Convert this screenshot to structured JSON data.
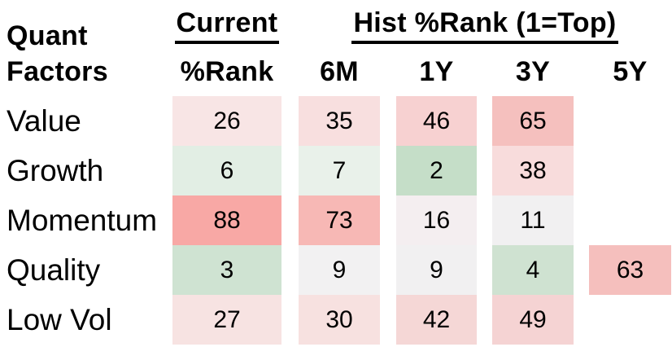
{
  "table": {
    "title_line1": "Quant",
    "title_line2": "Factors",
    "current_group_label": "Current",
    "current_sub_label": "%Rank",
    "hist_group_label": "Hist %Rank (1=Top)",
    "periods": [
      "6M",
      "1Y",
      "3Y",
      "5Y"
    ],
    "rows": [
      {
        "factor": "Value",
        "cells": [
          {
            "value": "26",
            "bg": "#f8e5e5"
          },
          {
            "value": "35",
            "bg": "#f8dfdf"
          },
          {
            "value": "46",
            "bg": "#f7d1d1"
          },
          {
            "value": "65",
            "bg": "#f5c0be"
          },
          null
        ]
      },
      {
        "factor": "Growth",
        "cells": [
          {
            "value": "6",
            "bg": "#e2eee4"
          },
          {
            "value": "7",
            "bg": "#e9f1ea"
          },
          {
            "value": "2",
            "bg": "#c5dec8"
          },
          {
            "value": "38",
            "bg": "#f8dcdc"
          },
          null
        ]
      },
      {
        "factor": "Momentum",
        "cells": [
          {
            "value": "88",
            "bg": "#f8a8a5"
          },
          {
            "value": "73",
            "bg": "#f7b8b5"
          },
          {
            "value": "16",
            "bg": "#f4eef0"
          },
          {
            "value": "11",
            "bg": "#f1f0f1"
          },
          null
        ]
      },
      {
        "factor": "Quality",
        "cells": [
          {
            "value": "3",
            "bg": "#cfe3d2"
          },
          {
            "value": "9",
            "bg": "#f2f1f2"
          },
          {
            "value": "9",
            "bg": "#f1f0f1"
          },
          {
            "value": "4",
            "bg": "#cfe2d1"
          },
          {
            "value": "63",
            "bg": "#f5bfbd"
          }
        ]
      },
      {
        "factor": "Low Vol",
        "cells": [
          {
            "value": "27",
            "bg": "#f7e3e2"
          },
          {
            "value": "30",
            "bg": "#f7e1e0"
          },
          {
            "value": "42",
            "bg": "#f5d7d6"
          },
          {
            "value": "49",
            "bg": "#f5d3d3"
          },
          null
        ]
      }
    ]
  },
  "colors": {
    "text": "#000000",
    "background": "#ffffff",
    "heat_low_green": "#c5dec8",
    "heat_mid_neutral": "#f1f0f1",
    "heat_high_red": "#f8a8a5"
  },
  "chart_data": {
    "type": "heatmap",
    "title": "Quant Factors — Current and Historical Percentile Rank (1=Top)",
    "row_labels": [
      "Value",
      "Growth",
      "Momentum",
      "Quality",
      "Low Vol"
    ],
    "col_labels": [
      "Current %Rank",
      "6M",
      "1Y",
      "3Y",
      "5Y"
    ],
    "col_groups": [
      {
        "label": "Current",
        "columns": [
          "%Rank"
        ]
      },
      {
        "label": "Hist %Rank (1=Top)",
        "columns": [
          "6M",
          "1Y",
          "3Y",
          "5Y"
        ]
      }
    ],
    "values": [
      [
        26,
        35,
        46,
        65,
        null
      ],
      [
        6,
        7,
        2,
        38,
        null
      ],
      [
        88,
        73,
        16,
        11,
        null
      ],
      [
        3,
        9,
        9,
        4,
        63
      ],
      [
        27,
        30,
        42,
        49,
        null
      ]
    ],
    "value_range": [
      1,
      100
    ],
    "color_scale": "low values green (good rank), mid neutral gray-white, high values red (poor rank)",
    "grid": false,
    "legend": false
  }
}
